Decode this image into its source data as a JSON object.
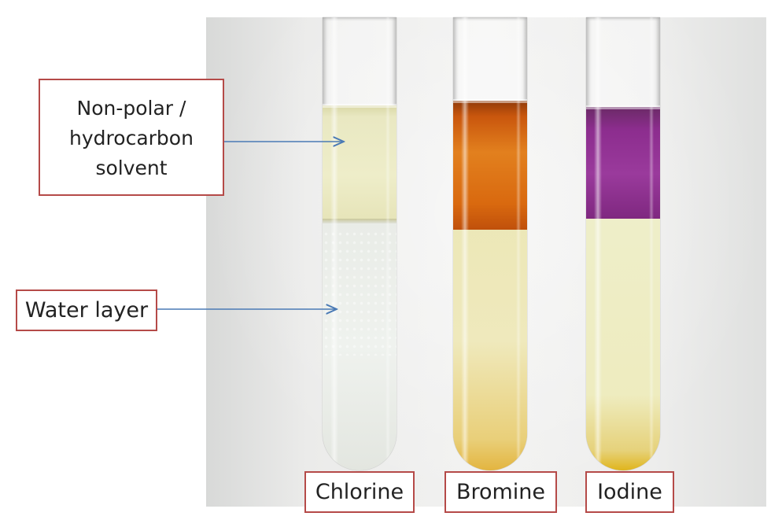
{
  "labels": {
    "solvent_line1": "Non-polar /",
    "solvent_line2": "hydrocarbon",
    "solvent_line3": "solvent",
    "water": "Water layer",
    "tube1": "Chlorine",
    "tube2": "Bromine",
    "tube3": "Iodine"
  },
  "colors": {
    "label_border": "#b54a48",
    "arrow": "#4a7ab5",
    "chlorine_solvent": "#eeedc9",
    "bromine_solvent": "#d9690f",
    "iodine_solvent": "#8c2d8e",
    "water": "#eeecbf"
  }
}
